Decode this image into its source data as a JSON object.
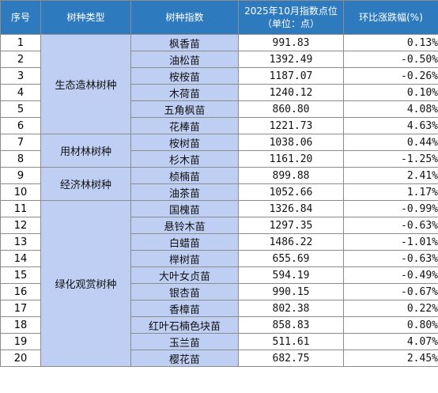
{
  "headers": {
    "seq": "序号",
    "type": "树种类型",
    "species": "树种指数",
    "index": "2025年10月指数点位（单位：点）",
    "change": "环比涨跌幅(%)"
  },
  "rows": [
    {
      "seq": "1",
      "category": "",
      "species": "枫香苗",
      "index": "991.83",
      "change": "0.13%"
    },
    {
      "seq": "2",
      "category": "",
      "species": "油松苗",
      "index": "1392.49",
      "change": "-0.50%"
    },
    {
      "seq": "3",
      "category": "",
      "species": "桉桉苗",
      "index": "1187.07",
      "change": "-0.26%"
    },
    {
      "seq": "4",
      "category": "",
      "species": "木荷苗",
      "index": "1240.12",
      "change": "0.10%"
    },
    {
      "seq": "5",
      "category": "",
      "species": "五角枫苗",
      "index": "860.80",
      "change": "4.08%"
    },
    {
      "seq": "6",
      "category": "",
      "species": "花棒苗",
      "index": "1221.73",
      "change": "4.63%"
    },
    {
      "seq": "7",
      "category": "",
      "species": "桉树苗",
      "index": "1038.06",
      "change": "0.44%"
    },
    {
      "seq": "8",
      "category": "",
      "species": "杉木苗",
      "index": "1161.20",
      "change": "-1.25%"
    },
    {
      "seq": "9",
      "category": "",
      "species": "桢楠苗",
      "index": "899.88",
      "change": "2.41%"
    },
    {
      "seq": "10",
      "category": "",
      "species": "油茶苗",
      "index": "1052.66",
      "change": "1.17%"
    },
    {
      "seq": "11",
      "category": "",
      "species": "国槐苗",
      "index": "1326.84",
      "change": "-0.99%"
    },
    {
      "seq": "12",
      "category": "",
      "species": "悬铃木苗",
      "index": "1297.35",
      "change": "-0.63%"
    },
    {
      "seq": "13",
      "category": "",
      "species": "白蜡苗",
      "index": "1486.22",
      "change": "-1.01%"
    },
    {
      "seq": "14",
      "category": "",
      "species": "榉树苗",
      "index": "655.69",
      "change": "-0.63%"
    },
    {
      "seq": "15",
      "category": "",
      "species": "大叶女贞苗",
      "index": "594.19",
      "change": "-0.49%"
    },
    {
      "seq": "16",
      "category": "",
      "species": "银杏苗",
      "index": "990.15",
      "change": "-0.67%"
    },
    {
      "seq": "17",
      "category": "",
      "species": "香樟苗",
      "index": "802.38",
      "change": "0.22%"
    },
    {
      "seq": "18",
      "category": "",
      "species": "红叶石楠色块苗",
      "index": "858.83",
      "change": "0.80%"
    },
    {
      "seq": "19",
      "category": "",
      "species": "玉兰苗",
      "index": "511.61",
      "change": "4.07%"
    },
    {
      "seq": "20",
      "category": "",
      "species": "樱花苗",
      "index": "682.75",
      "change": "2.45%"
    }
  ],
  "categories": [
    {
      "label": "生态造林树种",
      "first_row": 1,
      "row_count": 6
    },
    {
      "label": "用材林树种",
      "first_row": 7,
      "row_count": 2
    },
    {
      "label": "经济林树种",
      "first_row": 9,
      "row_count": 2
    },
    {
      "label": "绿化观赏树种",
      "first_row": 11,
      "row_count": 10
    }
  ],
  "colors": {
    "header_bg": "#2e7abf",
    "header_text": "#ffffff",
    "name_bg": "#bfcff3",
    "grid": "#8c8c8c"
  }
}
